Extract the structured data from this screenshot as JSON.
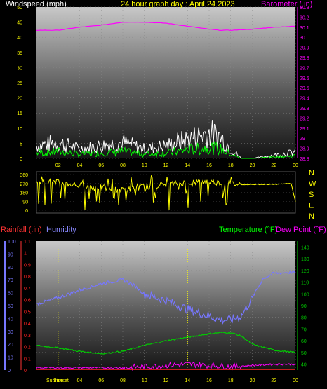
{
  "header": {
    "wind_label": "Windspeed (mph)",
    "title": "24 hour graph day : April 24 2023",
    "barometer_label": "Barometer (.in)"
  },
  "footer": {
    "rain_label": "Rainfall (.in)",
    "humidity_label": "Humidity",
    "temp_label": "Temperature (°F)",
    "dew_label": "Dew Point (°F)",
    "sunrise_label": "Sunrise",
    "sunset_label": "Sunset"
  },
  "compass": [
    "N",
    "W",
    "S",
    "E",
    "N"
  ],
  "colors": {
    "wind": "#ffffff",
    "gust": "#00ff00",
    "barometer": "#ff00ff",
    "direction": "#ffff00",
    "humidity": "#7777ff",
    "temperature": "#00cc00",
    "dewpoint": "#ff00ff",
    "rain": "#ff2222",
    "tick": "#ffff00"
  },
  "chart_data": [
    {
      "type": "line",
      "title": "24 hour graph day : April 24 2023",
      "x_ticks": [
        "02",
        "04",
        "06",
        "08",
        "10",
        "12",
        "14",
        "16",
        "18",
        "20",
        "22",
        "00"
      ],
      "y_left": {
        "label": "Windspeed (mph)",
        "ticks": [
          0,
          5,
          10,
          15,
          20,
          25,
          30,
          35,
          40,
          45,
          50
        ],
        "lim": [
          0,
          50
        ]
      },
      "y_right": {
        "label": "Barometer (.in)",
        "ticks": [
          "28.8",
          "28.9",
          "29",
          "29.1",
          "29.2",
          "29.3",
          "29.4",
          "29.5",
          "29.6",
          "29.7",
          "29.8",
          "29.9",
          "30",
          "30.1",
          "30.2",
          "30.3"
        ],
        "lim": [
          28.8,
          30.3
        ]
      },
      "series": [
        {
          "name": "Windspeed (mph)",
          "x_hours": [
            0,
            2,
            4,
            6,
            8,
            10,
            12,
            14,
            16,
            17,
            18,
            19,
            20,
            22,
            24
          ],
          "values": [
            4,
            5,
            3,
            4,
            5,
            3,
            4,
            6,
            8,
            7,
            3,
            0,
            0,
            1,
            2
          ]
        },
        {
          "name": "Barometer (.in)",
          "x_hours": [
            0,
            2,
            4,
            6,
            8,
            10,
            12,
            14,
            16,
            17,
            18,
            20,
            22,
            24
          ],
          "values": [
            30.07,
            30.07,
            30.1,
            30.12,
            30.15,
            30.15,
            30.14,
            30.11,
            30.08,
            30.07,
            30.07,
            30.08,
            30.1,
            30.11
          ]
        }
      ]
    },
    {
      "type": "scatter",
      "y_left": {
        "ticks": [
          0,
          90,
          180,
          270,
          360
        ],
        "lim": [
          0,
          360
        ]
      },
      "series": [
        {
          "name": "Wind direction",
          "x_hours": [
            0,
            2,
            4,
            6,
            8,
            10,
            12,
            14,
            16,
            18,
            19,
            20,
            22,
            23.6,
            24
          ],
          "values": [
            300,
            280,
            250,
            230,
            200,
            240,
            260,
            280,
            290,
            270,
            260,
            260,
            260,
            270,
            90
          ]
        }
      ]
    },
    {
      "type": "line",
      "x_ticks": [
        "Sunrise",
        "04",
        "06",
        "08",
        "10",
        "12",
        "14",
        "16",
        "18",
        "20",
        "22",
        "00"
      ],
      "y_left_humidity": {
        "label": "Humidity",
        "ticks": [
          0,
          10,
          20,
          30,
          40,
          50,
          60,
          70,
          80,
          90,
          100
        ],
        "lim": [
          0,
          100
        ]
      },
      "y_left_rain": {
        "label": "Rainfall (.in)",
        "ticks": [
          "0",
          "0.1",
          "0.2",
          "0.3",
          "0.4",
          "0.5",
          "0.6",
          "0.7",
          "0.8",
          "0.9",
          "1",
          "1.1"
        ],
        "lim": [
          0,
          1.1
        ]
      },
      "y_right": {
        "label": "Temperature (°F)",
        "ticks": [
          40,
          50,
          60,
          70,
          80,
          90,
          100,
          110,
          120,
          130,
          140
        ],
        "lim": [
          35,
          145
        ]
      },
      "series": [
        {
          "name": "Humidity",
          "x_hours": [
            0,
            2,
            4,
            6,
            8,
            9,
            10,
            12,
            14,
            16,
            17,
            18,
            19,
            20,
            21,
            22,
            24
          ],
          "values": [
            51,
            56,
            62,
            67,
            70,
            66,
            59,
            54,
            47,
            42,
            39,
            39,
            42,
            56,
            71,
            75,
            76
          ]
        },
        {
          "name": "Temperature (°F)",
          "x_hours": [
            0,
            2,
            4,
            6,
            8,
            10,
            12,
            14,
            16,
            17,
            18,
            19,
            20,
            22,
            24
          ],
          "values": [
            56,
            54,
            51,
            49,
            51,
            56,
            60,
            63,
            66,
            67,
            67,
            64,
            57,
            52,
            50
          ]
        },
        {
          "name": "Dew Point (°F)",
          "x_hours": [
            0,
            2,
            4,
            6,
            8,
            10,
            12,
            14,
            16,
            18,
            20,
            22,
            24
          ],
          "values": [
            37,
            37,
            37,
            37,
            37,
            38,
            39,
            40,
            39,
            38,
            39,
            40,
            40
          ]
        },
        {
          "name": "Rainfall (.in)",
          "x_hours": [
            0,
            24
          ],
          "values": [
            0,
            0
          ]
        }
      ]
    }
  ]
}
